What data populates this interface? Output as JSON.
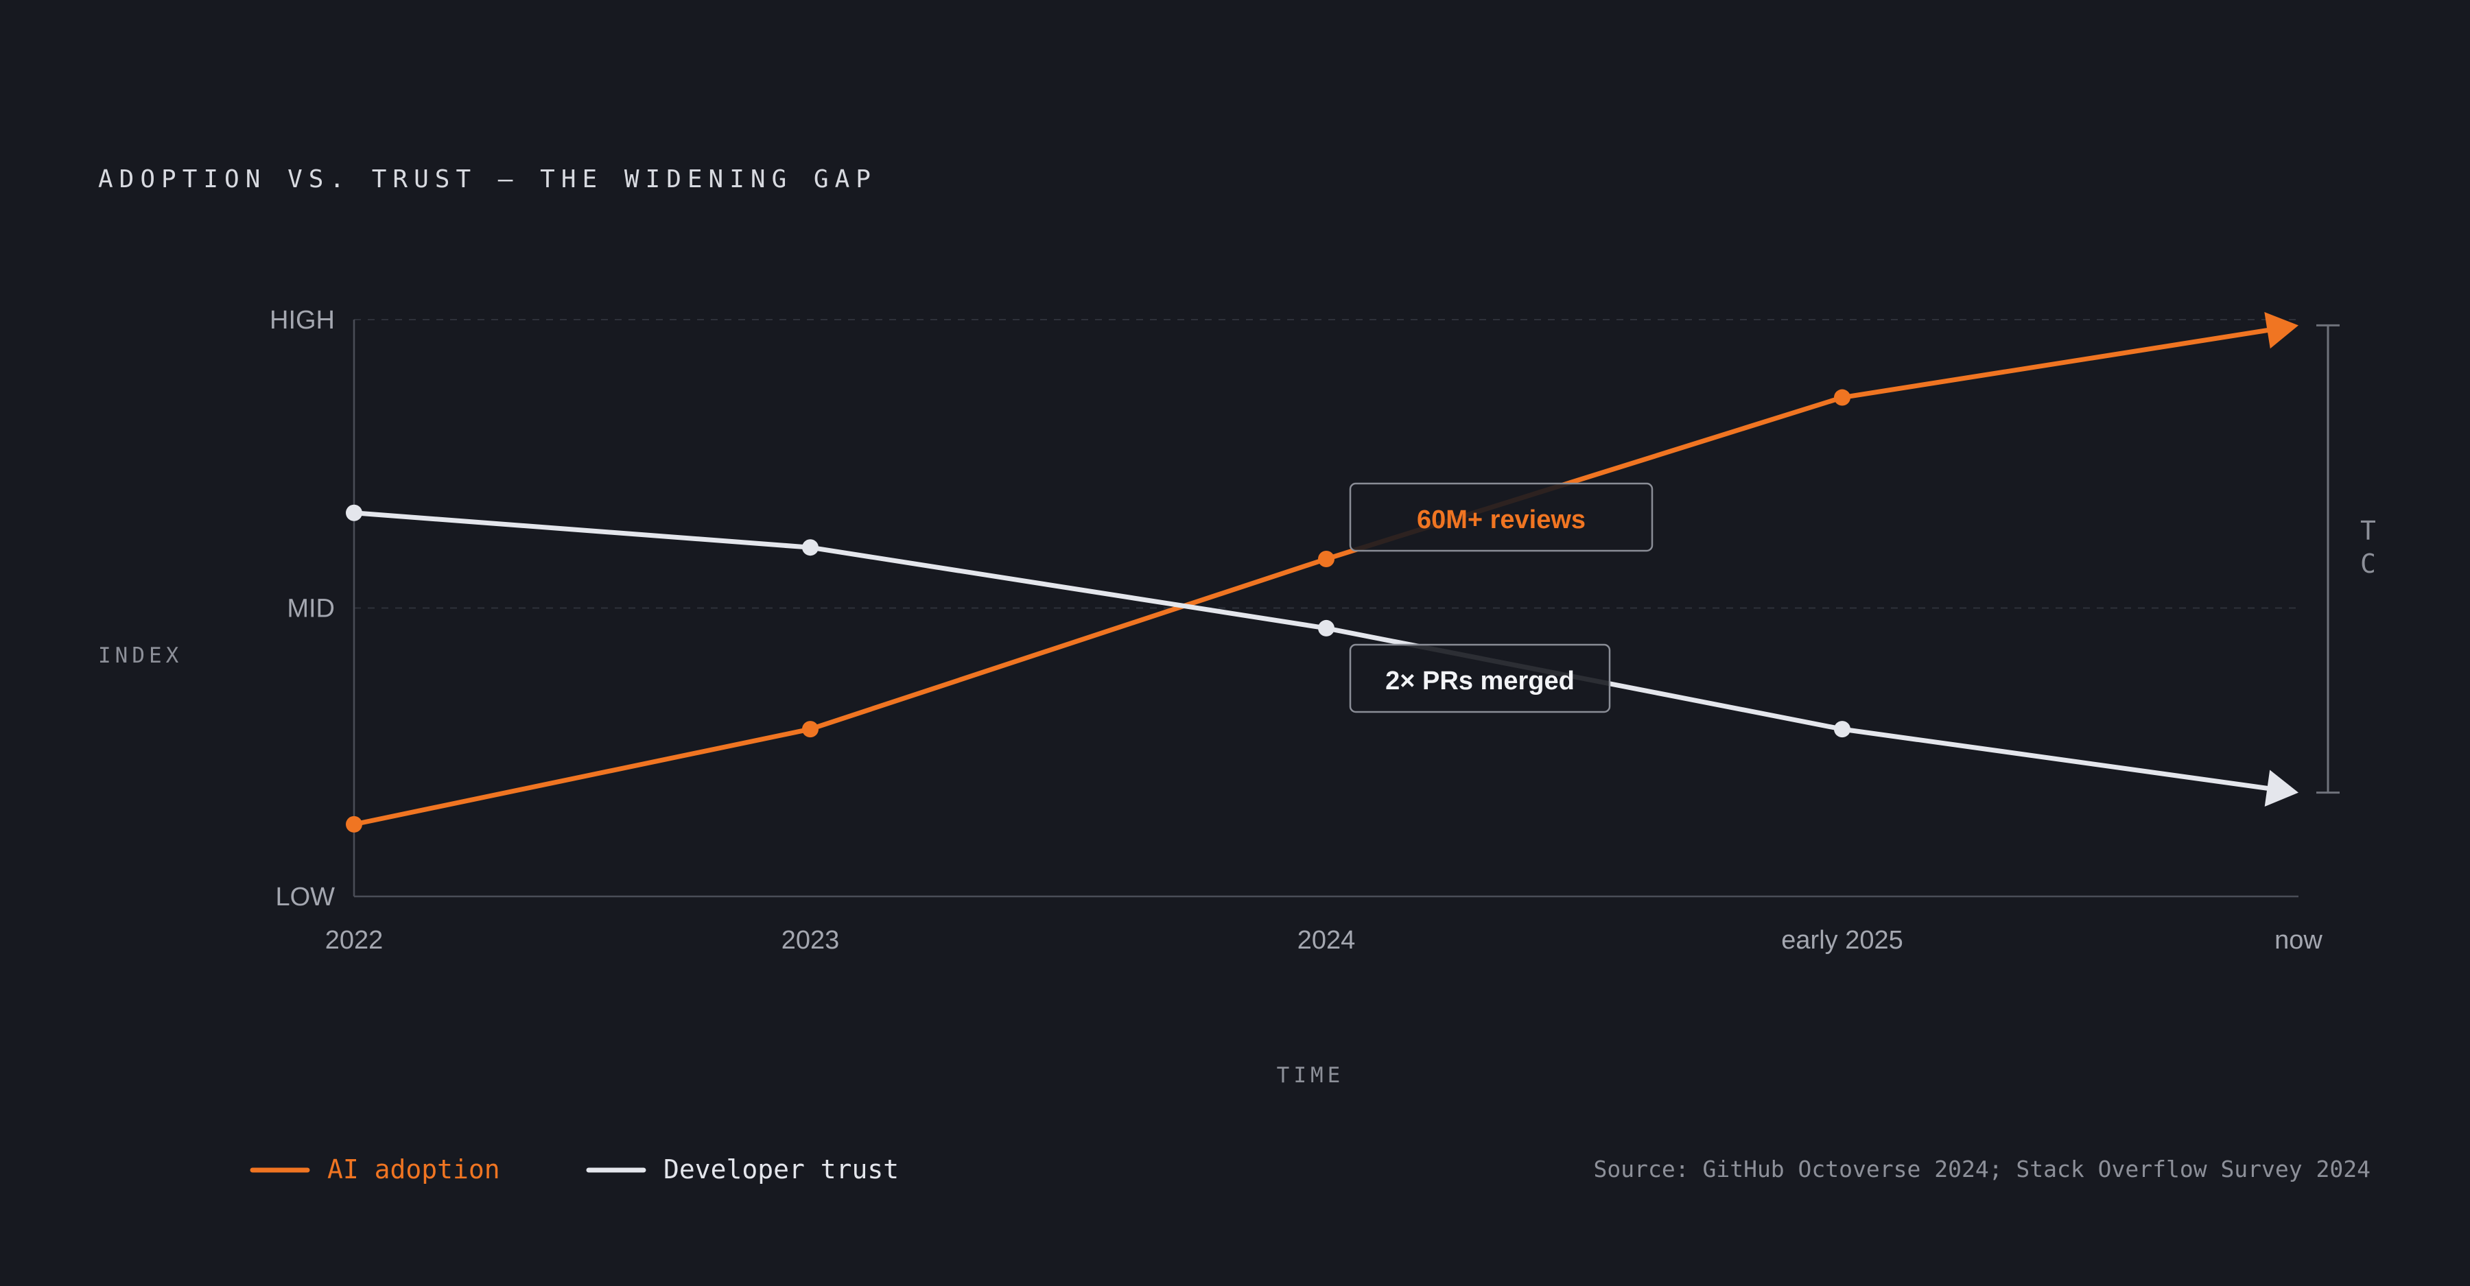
{
  "colors": {
    "background": "#171920",
    "adoption": "#F07522",
    "trust": "#E4E6EC",
    "axis": "#4A4D57",
    "grid": "#2E313A",
    "text_muted": "#8D9099",
    "text_label": "#A4A7B0",
    "title": "#D8DAE0"
  },
  "chart_data": {
    "type": "line",
    "title": "ADOPTION VS. TRUST — THE WIDENING GAP",
    "xlabel": "TIME",
    "ylabel": "INDEX",
    "categories": [
      "2022",
      "2023",
      "2024",
      "early 2025",
      "now"
    ],
    "y_ticks": [
      "LOW",
      "MID",
      "HIGH"
    ],
    "ylim": [
      0,
      1
    ],
    "grid": "dashed horizontal lines at HIGH and MID",
    "legend_position": "bottom-left",
    "series": [
      {
        "name": "AI adoption",
        "color": "#F07522",
        "values": [
          0.125,
          0.29,
          0.585,
          0.865,
          0.99
        ]
      },
      {
        "name": "Developer trust",
        "color": "#E4E6EC",
        "values": [
          0.665,
          0.605,
          0.465,
          0.29,
          0.18
        ]
      }
    ],
    "annotations": [
      {
        "text": "60M+ reviews",
        "series": "AI adoption",
        "category": "2024",
        "color": "#F07522"
      },
      {
        "text": "2× PRs merged",
        "series": "Developer trust",
        "category": "2024",
        "color": "#F2F3F6"
      }
    ],
    "gap_bracket": {
      "from": "AI adoption",
      "to": "Developer trust",
      "at": "now",
      "label_lines": [
        "T",
        "C"
      ]
    },
    "source": "Source: GitHub Octoverse 2024; Stack Overflow Survey 2024"
  }
}
